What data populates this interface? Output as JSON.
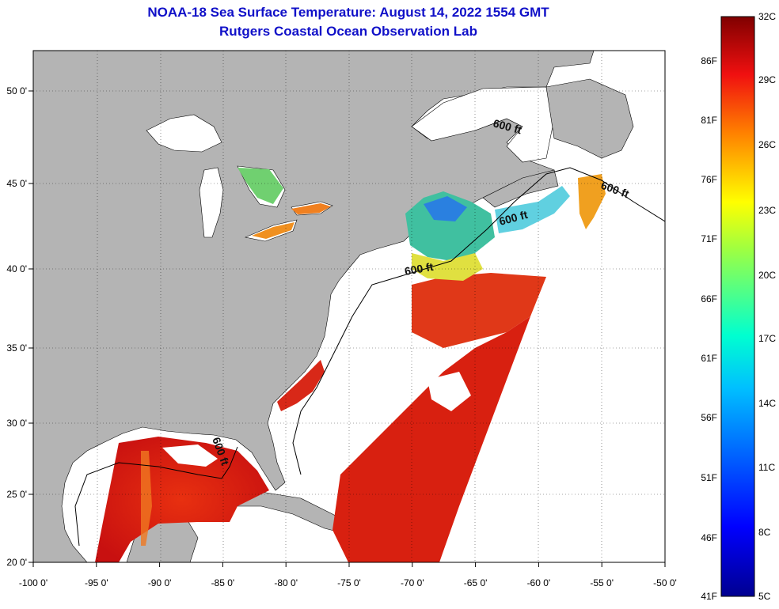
{
  "title": "NOAA-18 Sea Surface Temperature:  August 14, 2022 1554 GMT",
  "subtitle": "Rutgers Coastal Ocean Observation Lab",
  "lon_ticks": [
    "-100 0'",
    "-95 0'",
    "-90 0'",
    "-85 0'",
    "-80 0'",
    "-75 0'",
    "-70 0'",
    "-65 0'",
    "-60 0'",
    "-55 0'",
    "-50 0'"
  ],
  "lat_ticks": [
    "50 0'",
    "45 0'",
    "40 0'",
    "35 0'",
    "30 0'",
    "25 0'",
    "20 0'"
  ],
  "contour_labels": [
    "600 ft",
    "600 ft",
    "600 ft",
    "600 ft",
    "600 ft"
  ],
  "colorbar": {
    "celsius": [
      "32C",
      "29C",
      "26C",
      "23C",
      "20C",
      "17C",
      "14C",
      "11C",
      "8C",
      "5C"
    ],
    "fahrenheit": [
      "86F",
      "81F",
      "76F",
      "71F",
      "66F",
      "61F",
      "56F",
      "51F",
      "46F",
      "41F"
    ]
  },
  "colors": {
    "land": "#b4b4b4",
    "no_data": "#ffffff",
    "title": "#1010c8"
  }
}
